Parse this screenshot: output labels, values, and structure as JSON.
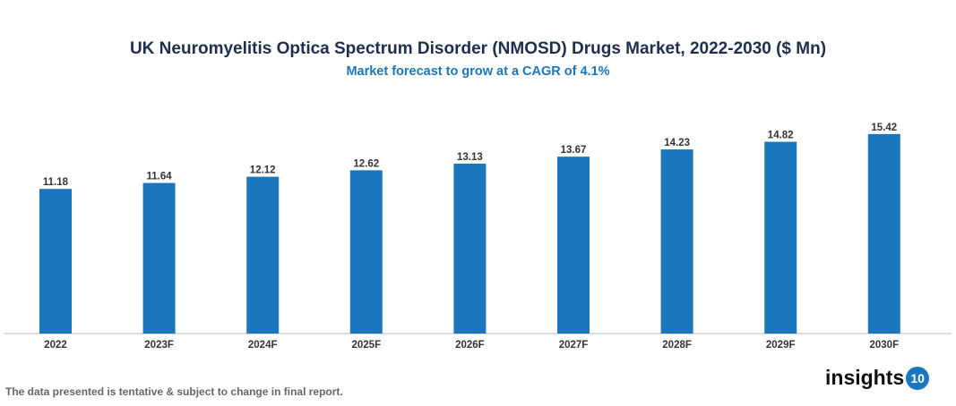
{
  "chart_data": {
    "type": "bar",
    "title": "UK Neuromyelitis Optica Spectrum Disorder (NMOSD) Drugs Market, 2022-2030 ($ Mn)",
    "subtitle": "Market forecast to grow at a CAGR of 4.1%",
    "categories": [
      "2022",
      "2023F",
      "2024F",
      "2025F",
      "2026F",
      "2027F",
      "2028F",
      "2029F",
      "2030F"
    ],
    "values": [
      11.18,
      11.64,
      12.12,
      12.62,
      13.13,
      13.67,
      14.23,
      14.82,
      15.42
    ],
    "ylim": [
      0,
      16
    ],
    "grid": false,
    "bar_color": "#1a76bd"
  },
  "footer": {
    "note": "The data presented is tentative & subject to change in final report.",
    "logo_text": "insights",
    "logo_badge": "10"
  }
}
